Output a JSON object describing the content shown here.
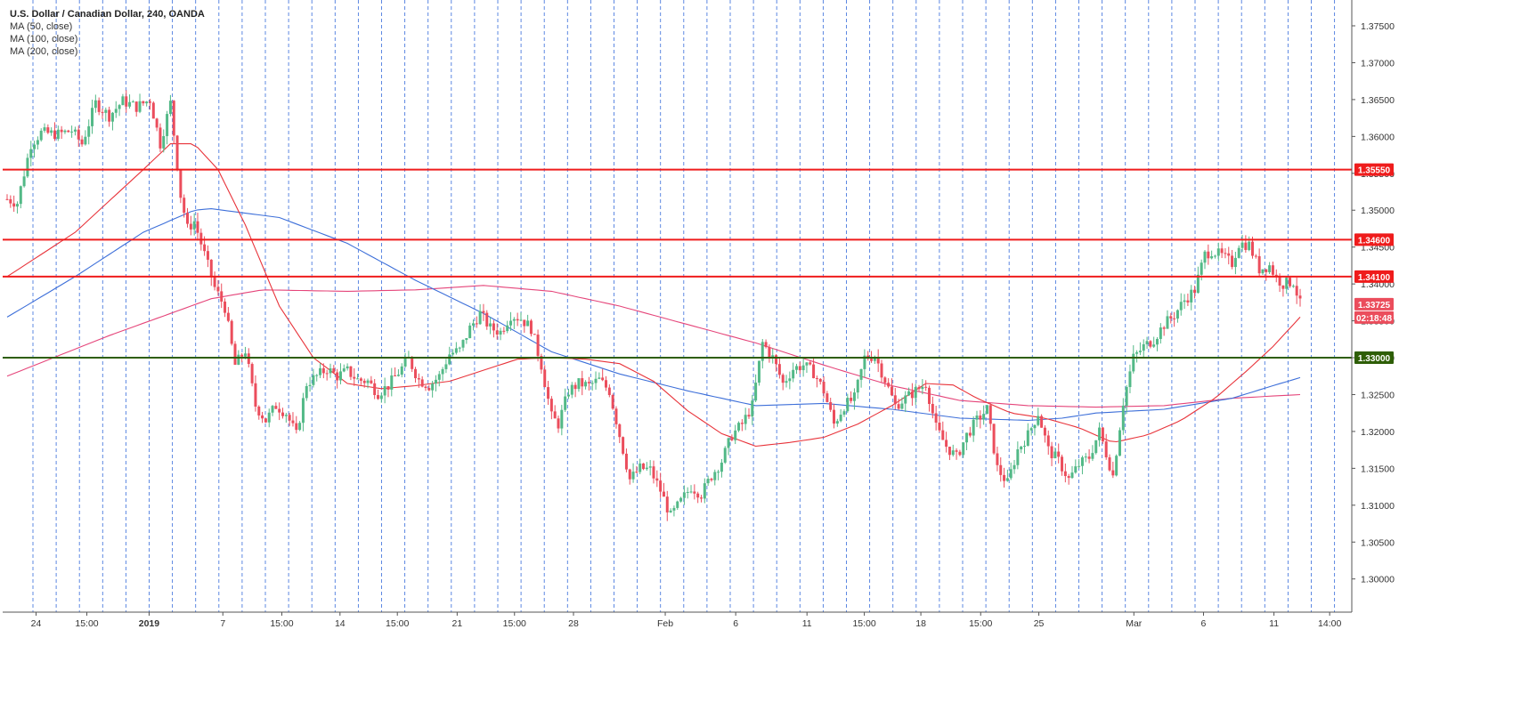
{
  "legend": {
    "title": "U.S. Dollar / Canadian Dollar, 240, OANDA",
    "ma50": "MA (50, close)",
    "ma100": "MA (100, close)",
    "ma200": "MA (200, close)"
  },
  "colors": {
    "up": "#53b987",
    "down": "#eb4d5c",
    "ma50": "#e8333a",
    "ma100": "#3d6fd9",
    "ma200": "#e5457a",
    "level": "#ef1c1c",
    "support": "#2e5e06",
    "grid": "#1f5bd6"
  },
  "chart_data": {
    "type": "candlestick",
    "symbol": "U.S. Dollar / Canadian Dollar",
    "interval": "240",
    "source": "OANDA",
    "ylim": [
      1.2955,
      1.3785
    ],
    "y_ticks": [
      "1.37500",
      "1.37000",
      "1.36500",
      "1.36000",
      "1.35500",
      "1.35000",
      "1.34500",
      "1.34000",
      "1.33500",
      "1.33000",
      "1.32500",
      "1.32000",
      "1.31500",
      "1.31000",
      "1.30500",
      "1.30000"
    ],
    "x_ticks": [
      "24",
      "15:00",
      "2019",
      "7",
      "15:00",
      "14",
      "15:00",
      "21",
      "15:00",
      "28",
      "Feb",
      "6",
      "11",
      "15:00",
      "18",
      "15:00",
      "25",
      "Mar",
      "6",
      "11",
      "14:00"
    ],
    "grid": "dashed vertical lines",
    "horizontal_levels": [
      {
        "label": "1.35550",
        "value": 1.3555
      },
      {
        "label": "1.34600",
        "value": 1.346
      },
      {
        "label": "1.34100",
        "value": 1.341
      },
      {
        "label": "1.33000",
        "value": 1.33
      }
    ],
    "current_price": {
      "label": "1.33725",
      "value": 1.33725,
      "countdown": "02:18:48"
    },
    "candle_anchors": [
      [
        0,
        1.3515
      ],
      [
        3,
        1.351
      ],
      [
        7,
        1.359
      ],
      [
        10,
        1.3605
      ],
      [
        15,
        1.3603
      ],
      [
        19,
        1.3608
      ],
      [
        22,
        1.359
      ],
      [
        26,
        1.3645
      ],
      [
        30,
        1.3628
      ],
      [
        34,
        1.3648
      ],
      [
        38,
        1.364
      ],
      [
        42,
        1.365
      ],
      [
        45,
        1.359
      ],
      [
        48,
        1.3645
      ],
      [
        51,
        1.352
      ],
      [
        53,
        1.3475
      ],
      [
        55,
        1.3485
      ],
      [
        58,
        1.344
      ],
      [
        61,
        1.3395
      ],
      [
        64,
        1.3368
      ],
      [
        67,
        1.329
      ],
      [
        70,
        1.331
      ],
      [
        73,
        1.3235
      ],
      [
        76,
        1.3215
      ],
      [
        79,
        1.3235
      ],
      [
        82,
        1.3225
      ],
      [
        85,
        1.3195
      ],
      [
        88,
        1.3265
      ],
      [
        91,
        1.3275
      ],
      [
        94,
        1.3285
      ],
      [
        97,
        1.3275
      ],
      [
        100,
        1.3282
      ],
      [
        103,
        1.327
      ],
      [
        106,
        1.3268
      ],
      [
        109,
        1.3252
      ],
      [
        112,
        1.3262
      ],
      [
        115,
        1.328
      ],
      [
        118,
        1.3298
      ],
      [
        121,
        1.327
      ],
      [
        124,
        1.3262
      ],
      [
        127,
        1.3275
      ],
      [
        130,
        1.3305
      ],
      [
        133,
        1.331
      ],
      [
        136,
        1.334
      ],
      [
        139,
        1.336
      ],
      [
        142,
        1.334
      ],
      [
        145,
        1.3335
      ],
      [
        148,
        1.3358
      ],
      [
        151,
        1.3353
      ],
      [
        154,
        1.334
      ],
      [
        157,
        1.329
      ],
      [
        160,
        1.322
      ],
      [
        162,
        1.321
      ],
      [
        165,
        1.3255
      ],
      [
        168,
        1.3265
      ],
      [
        171,
        1.3262
      ],
      [
        174,
        1.327
      ],
      [
        177,
        1.3255
      ],
      [
        180,
        1.3195
      ],
      [
        183,
        1.3135
      ],
      [
        186,
        1.315
      ],
      [
        189,
        1.3148
      ],
      [
        192,
        1.312
      ],
      [
        195,
        1.3085
      ],
      [
        198,
        1.3105
      ],
      [
        201,
        1.3125
      ],
      [
        204,
        1.3115
      ],
      [
        207,
        1.314
      ],
      [
        210,
        1.316
      ],
      [
        213,
        1.3195
      ],
      [
        216,
        1.321
      ],
      [
        219,
        1.3235
      ],
      [
        222,
        1.332
      ],
      [
        225,
        1.33
      ],
      [
        228,
        1.3265
      ],
      [
        231,
        1.3285
      ],
      [
        234,
        1.329
      ],
      [
        237,
        1.328
      ],
      [
        240,
        1.3255
      ],
      [
        243,
        1.321
      ],
      [
        246,
        1.3235
      ],
      [
        249,
        1.3245
      ],
      [
        252,
        1.33
      ],
      [
        255,
        1.3303
      ],
      [
        258,
        1.327
      ],
      [
        261,
        1.3235
      ],
      [
        264,
        1.3245
      ],
      [
        267,
        1.3255
      ],
      [
        270,
        1.3265
      ],
      [
        273,
        1.3205
      ],
      [
        276,
        1.318
      ],
      [
        279,
        1.3165
      ],
      [
        282,
        1.3195
      ],
      [
        285,
        1.3215
      ],
      [
        288,
        1.323
      ],
      [
        291,
        1.315
      ],
      [
        294,
        1.313
      ],
      [
        297,
        1.3175
      ],
      [
        300,
        1.3195
      ],
      [
        303,
        1.3225
      ],
      [
        306,
        1.3175
      ],
      [
        309,
        1.316
      ],
      [
        312,
        1.3135
      ],
      [
        315,
        1.3155
      ],
      [
        318,
        1.3165
      ],
      [
        321,
        1.32
      ],
      [
        325,
        1.314
      ],
      [
        328,
        1.324
      ],
      [
        331,
        1.33
      ],
      [
        334,
        1.3315
      ],
      [
        337,
        1.3325
      ],
      [
        340,
        1.3345
      ],
      [
        343,
        1.3358
      ],
      [
        346,
        1.3378
      ],
      [
        349,
        1.3392
      ],
      [
        352,
        1.344
      ],
      [
        354,
        1.3445
      ],
      [
        357,
        1.3438
      ],
      [
        360,
        1.3428
      ],
      [
        362,
        1.3455
      ],
      [
        365,
        1.3453
      ],
      [
        368,
        1.342
      ],
      [
        371,
        1.3425
      ],
      [
        373,
        1.3408
      ],
      [
        375,
        1.34
      ],
      [
        378,
        1.3403
      ],
      [
        380,
        1.33725
      ]
    ],
    "ma50_points": [
      [
        0,
        1.341
      ],
      [
        20,
        1.347
      ],
      [
        40,
        1.3555
      ],
      [
        48,
        1.359
      ],
      [
        55,
        1.359
      ],
      [
        62,
        1.3555
      ],
      [
        70,
        1.348
      ],
      [
        80,
        1.337
      ],
      [
        90,
        1.33
      ],
      [
        100,
        1.3265
      ],
      [
        110,
        1.3258
      ],
      [
        120,
        1.3262
      ],
      [
        130,
        1.3268
      ],
      [
        140,
        1.3283
      ],
      [
        150,
        1.3298
      ],
      [
        160,
        1.33
      ],
      [
        170,
        1.3298
      ],
      [
        180,
        1.3292
      ],
      [
        190,
        1.3268
      ],
      [
        200,
        1.3228
      ],
      [
        210,
        1.3197
      ],
      [
        220,
        1.318
      ],
      [
        230,
        1.3185
      ],
      [
        240,
        1.3192
      ],
      [
        250,
        1.321
      ],
      [
        260,
        1.3235
      ],
      [
        270,
        1.3265
      ],
      [
        278,
        1.3263
      ],
      [
        285,
        1.3245
      ],
      [
        295,
        1.3225
      ],
      [
        305,
        1.3218
      ],
      [
        315,
        1.3205
      ],
      [
        325,
        1.3185
      ],
      [
        335,
        1.3195
      ],
      [
        345,
        1.3215
      ],
      [
        355,
        1.3245
      ],
      [
        365,
        1.3285
      ],
      [
        372,
        1.3315
      ],
      [
        380,
        1.3355
      ]
    ],
    "ma100_points": [
      [
        0,
        1.3355
      ],
      [
        20,
        1.341
      ],
      [
        40,
        1.347
      ],
      [
        55,
        1.35
      ],
      [
        60,
        1.3502
      ],
      [
        80,
        1.349
      ],
      [
        100,
        1.3455
      ],
      [
        120,
        1.3405
      ],
      [
        140,
        1.336
      ],
      [
        160,
        1.3308
      ],
      [
        180,
        1.3278
      ],
      [
        200,
        1.3255
      ],
      [
        220,
        1.3235
      ],
      [
        240,
        1.3238
      ],
      [
        260,
        1.323
      ],
      [
        280,
        1.3218
      ],
      [
        300,
        1.3215
      ],
      [
        310,
        1.3218
      ],
      [
        320,
        1.3225
      ],
      [
        340,
        1.323
      ],
      [
        360,
        1.3245
      ],
      [
        372,
        1.3262
      ],
      [
        380,
        1.3273
      ]
    ],
    "ma200_points": [
      [
        0,
        1.3275
      ],
      [
        30,
        1.333
      ],
      [
        60,
        1.338
      ],
      [
        75,
        1.3392
      ],
      [
        100,
        1.339
      ],
      [
        120,
        1.3392
      ],
      [
        140,
        1.3398
      ],
      [
        160,
        1.339
      ],
      [
        180,
        1.337
      ],
      [
        200,
        1.3345
      ],
      [
        220,
        1.332
      ],
      [
        240,
        1.329
      ],
      [
        260,
        1.3262
      ],
      [
        280,
        1.3242
      ],
      [
        300,
        1.3235
      ],
      [
        320,
        1.3233
      ],
      [
        340,
        1.3235
      ],
      [
        360,
        1.3245
      ],
      [
        380,
        1.325
      ]
    ]
  }
}
